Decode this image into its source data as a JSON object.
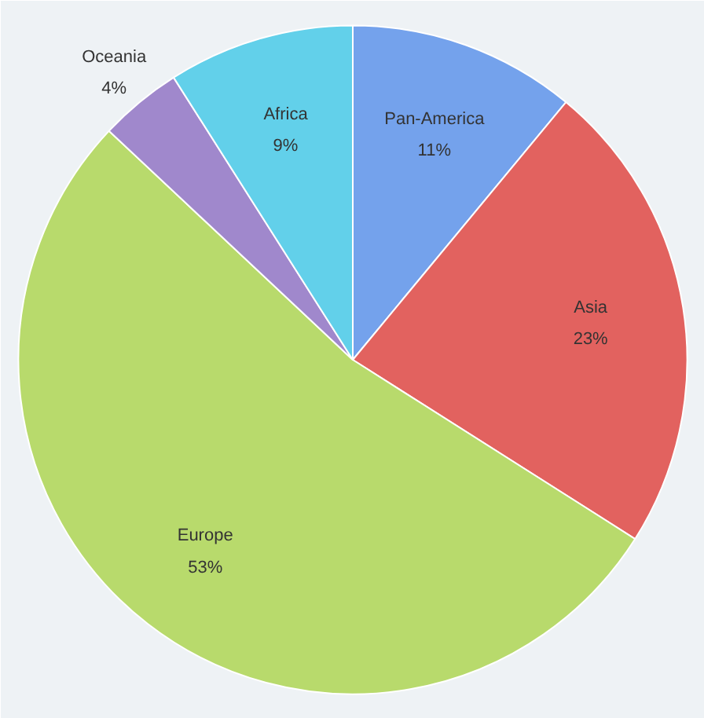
{
  "chart_data": {
    "type": "pie",
    "categories": [
      "Pan-America",
      "Asia",
      "Europe",
      "Oceania",
      "Africa"
    ],
    "values": [
      11,
      23,
      53,
      4,
      9
    ],
    "value_labels": [
      "11%",
      "23%",
      "53%",
      "4%",
      "9%"
    ],
    "colors": [
      "#74a2ec",
      "#e2625f",
      "#b8da6c",
      "#a088cc",
      "#62d0ea"
    ]
  }
}
